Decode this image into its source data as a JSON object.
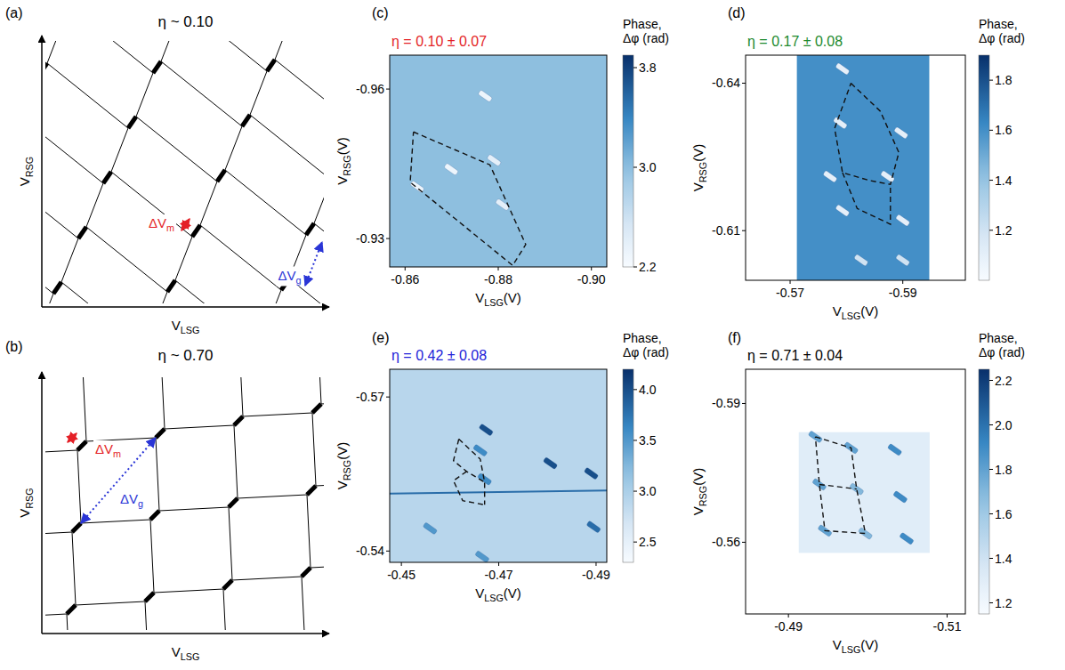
{
  "chart_data": [
    {
      "type": "diagram",
      "panel": "(a)",
      "title": "η ~ 0.10",
      "xlabel": {
        "text": "V",
        "sub": "LSG"
      },
      "ylabel": {
        "text": "V",
        "sub": "RSG"
      },
      "annotations": [
        {
          "text": "ΔV",
          "sub": "m",
          "color": "#e41f26"
        },
        {
          "text": "ΔV",
          "sub": "g",
          "color": "#2a35d6"
        }
      ],
      "tick_labels": false
    },
    {
      "type": "diagram",
      "panel": "(b)",
      "title": "η ~ 0.70",
      "xlabel": {
        "text": "V",
        "sub": "LSG"
      },
      "ylabel": {
        "text": "V",
        "sub": "RSG"
      },
      "annotations": [
        {
          "text": "ΔV",
          "sub": "m",
          "color": "#e41f26"
        },
        {
          "text": "ΔV",
          "sub": "g",
          "color": "#2a35d6"
        }
      ],
      "tick_labels": false
    },
    {
      "type": "heatmap",
      "panel": "(c)",
      "title": "η = 0.10 ± 0.07",
      "color": "#e41f26",
      "xlabel": {
        "text": "V",
        "sub": "LSG",
        "unit": "(V)"
      },
      "ylabel": {
        "text": "V",
        "sub": "RSG",
        "unit": "(V)"
      },
      "xlim": [
        -0.8567,
        -0.9033
      ],
      "ylim": [
        -0.9243,
        -0.9668
      ],
      "xticks": [
        -0.86,
        -0.88,
        {
          "value": -0.9,
          "label": "-0.90"
        }
      ],
      "yticks": [
        -0.96,
        -0.93
      ],
      "colorbar": {
        "label": [
          "Phase,",
          "Δφ (rad)"
        ],
        "range": [
          2.2,
          3.9
        ],
        "ticks": [
          2.2,
          {
            "value": 3,
            "label": "3.0"
          },
          3.8
        ]
      },
      "background": 3.0,
      "spots": [
        {
          "x": -0.8772,
          "y": -0.9586,
          "value": 2.3
        },
        {
          "x": -0.8699,
          "y": -0.9439,
          "value": 2.3
        },
        {
          "x": -0.8626,
          "y": -0.9404,
          "value": 2.3
        },
        {
          "x": -0.8791,
          "y": -0.9457,
          "value": 2.4
        },
        {
          "x": -0.8809,
          "y": -0.9368,
          "value": 2.4
        }
      ],
      "outlines": [
        {
          "x": [
            -0.8618,
            -0.8782,
            -0.8859,
            -0.8831,
            -0.8611,
            -0.8618
          ],
          "y": [
            -0.9514,
            -0.9448,
            -0.9288,
            -0.9246,
            -0.9413,
            -0.9514
          ]
        }
      ]
    },
    {
      "type": "heatmap",
      "panel": "(d)",
      "title": "η = 0.17 ± 0.08",
      "color": "#1d8a2e",
      "xlabel": {
        "text": "V",
        "sub": "LSG",
        "unit": "(V)"
      },
      "ylabel": {
        "text": "V",
        "sub": "RSG",
        "unit": "(V)"
      },
      "xlim": [
        -0.5621,
        -0.6011
      ],
      "ylim": [
        -0.5999,
        -0.6457
      ],
      "scan_xlim": [
        -0.5712,
        -0.5947
      ],
      "xticks": [
        -0.57,
        -0.59
      ],
      "yticks": [
        -0.64,
        -0.61
      ],
      "colorbar": {
        "label": [
          "Phase,",
          "Δφ (rad)"
        ],
        "range": [
          1.0,
          1.9
        ],
        "ticks": [
          1.2,
          1.4,
          1.6,
          1.8
        ]
      },
      "background": 1.6,
      "spots": [
        {
          "x": -0.5793,
          "y": -0.6429,
          "value": 1.1
        },
        {
          "x": -0.5789,
          "y": -0.6319,
          "value": 1.1
        },
        {
          "x": -0.5897,
          "y": -0.6299,
          "value": 1.1
        },
        {
          "x": -0.5771,
          "y": -0.621,
          "value": 1.1
        },
        {
          "x": -0.5873,
          "y": -0.621,
          "value": 1.1
        },
        {
          "x": -0.5793,
          "y": -0.6141,
          "value": 1.1
        },
        {
          "x": -0.59,
          "y": -0.6121,
          "value": 1.1
        },
        {
          "x": -0.5826,
          "y": -0.604,
          "value": 1.2
        },
        {
          "x": -0.59,
          "y": -0.604,
          "value": 1.2
        }
      ],
      "outlines": [
        {
          "x": [
            -0.5808,
            -0.586,
            -0.5893,
            -0.5878,
            -0.5841,
            -0.5793,
            -0.5779,
            -0.5808
          ],
          "y": [
            -0.64,
            -0.6343,
            -0.6259,
            -0.6194,
            -0.6202,
            -0.6218,
            -0.6308,
            -0.64
          ]
        },
        {
          "x": [
            -0.5793,
            -0.5819,
            -0.5878,
            -0.5878
          ],
          "y": [
            -0.6218,
            -0.6145,
            -0.6113,
            -0.6194
          ]
        }
      ]
    },
    {
      "type": "heatmap",
      "panel": "(e)",
      "title": "η = 0.42 ± 0.08",
      "color": "#2222d8",
      "xlabel": {
        "text": "V",
        "sub": "LSG",
        "unit": "(V)"
      },
      "ylabel": {
        "text": "V",
        "sub": "RSG",
        "unit": "(V)"
      },
      "xlim": [
        -0.4476,
        -0.4922
      ],
      "ylim": [
        -0.5378,
        -0.5754
      ],
      "xticks": [
        -0.45,
        -0.47,
        -0.49
      ],
      "yticks": [
        -0.57,
        -0.54
      ],
      "colorbar": {
        "label": [
          "Phase,",
          "Δφ (rad)"
        ],
        "range": [
          2.3,
          4.2
        ],
        "ticks": [
          2.5,
          {
            "value": 3,
            "label": "3.0"
          },
          3.5,
          {
            "value": 4,
            "label": "4.0"
          }
        ]
      },
      "background": 2.9,
      "spots": [
        {
          "x": -0.4674,
          "y": -0.5636,
          "value": 4.0
        },
        {
          "x": -0.4662,
          "y": -0.5596,
          "value": 3.6
        },
        {
          "x": -0.4806,
          "y": -0.5571,
          "value": 4.0
        },
        {
          "x": -0.489,
          "y": -0.5551,
          "value": 4.0
        },
        {
          "x": -0.4895,
          "y": -0.5447,
          "value": 3.8
        },
        {
          "x": -0.4671,
          "y": -0.554,
          "value": 3.6
        },
        {
          "x": -0.4559,
          "y": -0.5444,
          "value": 3.5
        },
        {
          "x": -0.4666,
          "y": -0.5389,
          "value": 3.5
        }
      ],
      "lines": [
        {
          "x": [
            -0.4476,
            -0.4922
          ],
          "y": [
            -0.5512,
            -0.5518
          ],
          "value": 3.8
        }
      ],
      "outlines": [
        {
          "x": [
            -0.4618,
            -0.4662,
            -0.4671,
            -0.4671
          ],
          "y": [
            -0.5618,
            -0.5579,
            -0.5534,
            -0.549
          ]
        },
        {
          "x": [
            -0.4618,
            -0.4607,
            -0.4634,
            -0.4671
          ],
          "y": [
            -0.5618,
            -0.5576,
            -0.5555,
            -0.5534
          ]
        },
        {
          "x": [
            -0.4634,
            -0.4607,
            -0.4626,
            -0.4671
          ],
          "y": [
            -0.5555,
            -0.5537,
            -0.5498,
            -0.549
          ]
        }
      ]
    },
    {
      "type": "heatmap",
      "panel": "(f)",
      "title": "η = 0.71 ± 0.04",
      "color": "#000000",
      "xlabel": {
        "text": "V",
        "sub": "LSG",
        "unit": "(V)"
      },
      "ylabel": {
        "text": "V",
        "sub": "RSG",
        "unit": "(V)"
      },
      "xlim": [
        -0.4846,
        -0.5123
      ],
      "ylim": [
        -0.5445,
        -0.5974
      ],
      "scan_xlim": [
        -0.4913,
        -0.5078
      ],
      "scan_ylim": [
        -0.5577,
        -0.5838
      ],
      "xticks": [
        -0.49,
        -0.51
      ],
      "yticks": [
        -0.59,
        -0.56
      ],
      "colorbar": {
        "label": [
          "Phase,",
          "Δφ (rad)"
        ],
        "range": [
          1.15,
          2.25
        ],
        "ticks": [
          1.2,
          1.4,
          1.6,
          1.8,
          {
            "value": 2,
            "label": "2.0"
          },
          2.2
        ]
      },
      "background": 1.3,
      "spots": [
        {
          "x": -0.4934,
          "y": -0.5828,
          "value": 1.8
        },
        {
          "x": -0.4979,
          "y": -0.5804,
          "value": 1.8
        },
        {
          "x": -0.4939,
          "y": -0.5725,
          "value": 1.8
        },
        {
          "x": -0.4986,
          "y": -0.5715,
          "value": 1.7
        },
        {
          "x": -0.4946,
          "y": -0.5625,
          "value": 1.8
        },
        {
          "x": -0.4997,
          "y": -0.5619,
          "value": 1.7
        },
        {
          "x": -0.5034,
          "y": -0.58,
          "value": 1.9
        },
        {
          "x": -0.5041,
          "y": -0.5698,
          "value": 1.9
        },
        {
          "x": -0.5049,
          "y": -0.5608,
          "value": 1.9
        }
      ],
      "outlines": [
        {
          "x": [
            -0.4934,
            -0.4979,
            -0.4986,
            -0.4997,
            -0.4946,
            -0.4939,
            -0.4934
          ],
          "y": [
            -0.5828,
            -0.5804,
            -0.5715,
            -0.5619,
            -0.5625,
            -0.5725,
            -0.5828
          ]
        },
        {
          "x": [
            -0.4939,
            -0.4986
          ],
          "y": [
            -0.5725,
            -0.5715
          ]
        }
      ]
    }
  ]
}
